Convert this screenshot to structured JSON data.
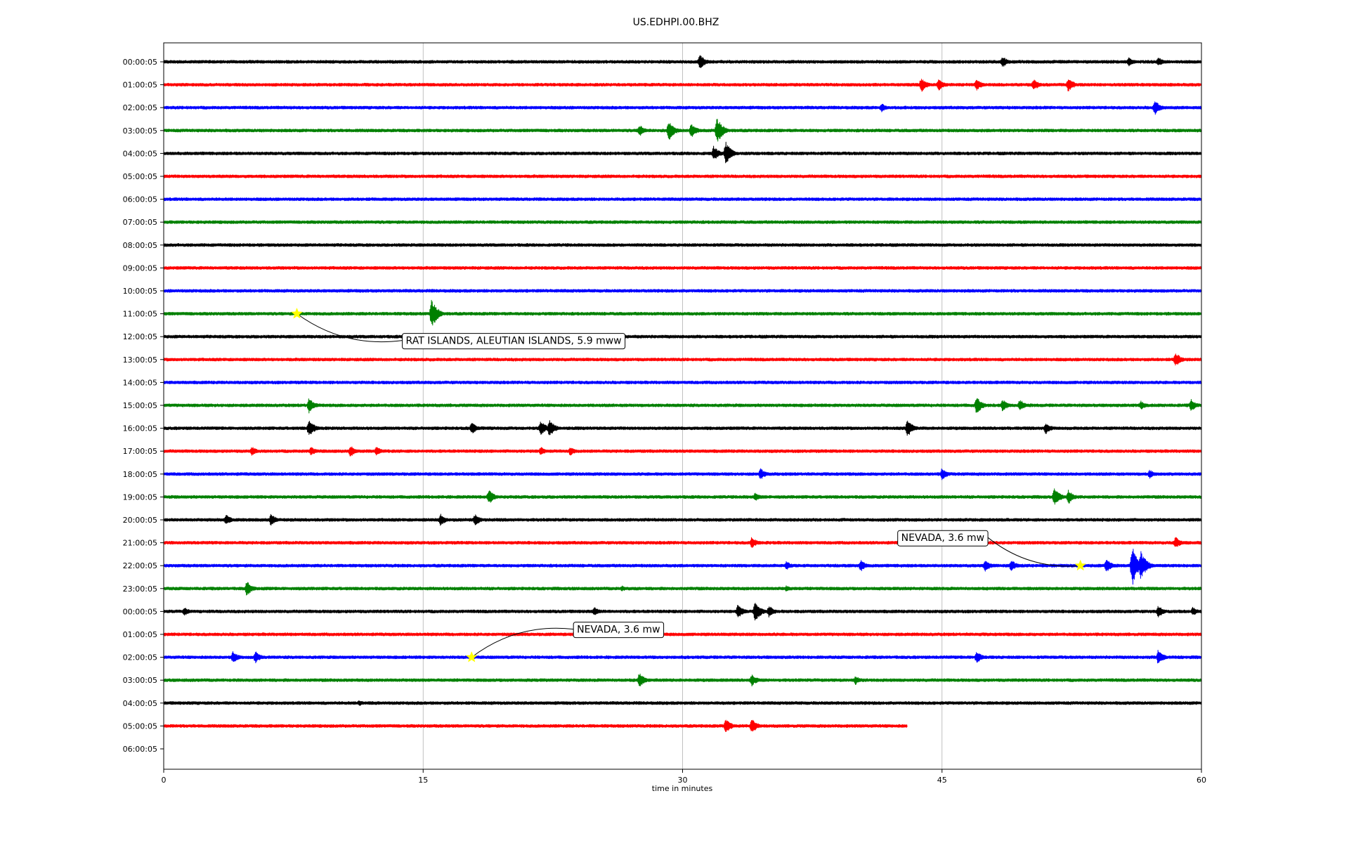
{
  "chart_data": {
    "type": "line",
    "title": "US.EDHPI.00.BHZ",
    "xlabel": "time in minutes",
    "ylabel": "",
    "xlim": [
      0,
      60
    ],
    "x_ticks": [
      0,
      15,
      30,
      45,
      60
    ],
    "grid": "vertical lines at x ticks",
    "row_labels": [
      "00:00:05",
      "01:00:05",
      "02:00:05",
      "03:00:05",
      "04:00:05",
      "05:00:05",
      "06:00:05",
      "07:00:05",
      "08:00:05",
      "09:00:05",
      "10:00:05",
      "11:00:05",
      "12:00:05",
      "13:00:05",
      "14:00:05",
      "15:00:05",
      "16:00:05",
      "17:00:05",
      "18:00:05",
      "19:00:05",
      "20:00:05",
      "21:00:05",
      "22:00:05",
      "23:00:05",
      "00:00:05",
      "01:00:05",
      "02:00:05",
      "03:00:05",
      "04:00:05",
      "05:00:05",
      "06:00:05"
    ],
    "colors": [
      "#000000",
      "#ff0000",
      "#0000ff",
      "#008000"
    ],
    "noise_amplitude": 1.0,
    "last_trace": {
      "row": 29,
      "end_minute": 43
    },
    "bursts": [
      {
        "row": 0,
        "minute": 31,
        "amplitude": 5
      },
      {
        "row": 0,
        "minute": 48.5,
        "amplitude": 4
      },
      {
        "row": 0,
        "minute": 55.8,
        "amplitude": 3
      },
      {
        "row": 0,
        "minute": 57.5,
        "amplitude": 3
      },
      {
        "row": 1,
        "minute": 43.8,
        "amplitude": 5
      },
      {
        "row": 1,
        "minute": 44.8,
        "amplitude": 4
      },
      {
        "row": 1,
        "minute": 47,
        "amplitude": 4
      },
      {
        "row": 1,
        "minute": 50.3,
        "amplitude": 4
      },
      {
        "row": 1,
        "minute": 52.3,
        "amplitude": 5
      },
      {
        "row": 2,
        "minute": 41.5,
        "amplitude": 3
      },
      {
        "row": 2,
        "minute": 57.3,
        "amplitude": 5
      },
      {
        "row": 3,
        "minute": 27.5,
        "amplitude": 4
      },
      {
        "row": 3,
        "minute": 29.2,
        "amplitude": 7
      },
      {
        "row": 3,
        "minute": 30.5,
        "amplitude": 5
      },
      {
        "row": 3,
        "minute": 32,
        "amplitude": 9
      },
      {
        "row": 4,
        "minute": 31.8,
        "amplitude": 5
      },
      {
        "row": 4,
        "minute": 32.5,
        "amplitude": 8
      },
      {
        "row": 11,
        "minute": 15.5,
        "amplitude": 10
      },
      {
        "row": 13,
        "minute": 58.5,
        "amplitude": 5
      },
      {
        "row": 15,
        "minute": 8.4,
        "amplitude": 5
      },
      {
        "row": 15,
        "minute": 47,
        "amplitude": 6
      },
      {
        "row": 15,
        "minute": 48.5,
        "amplitude": 4
      },
      {
        "row": 15,
        "minute": 49.5,
        "amplitude": 4
      },
      {
        "row": 15,
        "minute": 56.5,
        "amplitude": 3
      },
      {
        "row": 15,
        "minute": 59.4,
        "amplitude": 4
      },
      {
        "row": 16,
        "minute": 8.4,
        "amplitude": 6
      },
      {
        "row": 16,
        "minute": 17.8,
        "amplitude": 4
      },
      {
        "row": 16,
        "minute": 21.8,
        "amplitude": 5
      },
      {
        "row": 16,
        "minute": 22.3,
        "amplitude": 6
      },
      {
        "row": 16,
        "minute": 43,
        "amplitude": 6
      },
      {
        "row": 16,
        "minute": 51,
        "amplitude": 4
      },
      {
        "row": 17,
        "minute": 5.1,
        "amplitude": 3
      },
      {
        "row": 17,
        "minute": 8.5,
        "amplitude": 3
      },
      {
        "row": 17,
        "minute": 10.8,
        "amplitude": 4
      },
      {
        "row": 17,
        "minute": 12.3,
        "amplitude": 3
      },
      {
        "row": 17,
        "minute": 21.8,
        "amplitude": 3
      },
      {
        "row": 17,
        "minute": 23.5,
        "amplitude": 3
      },
      {
        "row": 18,
        "minute": 34.5,
        "amplitude": 4
      },
      {
        "row": 18,
        "minute": 45,
        "amplitude": 4
      },
      {
        "row": 18,
        "minute": 57,
        "amplitude": 3
      },
      {
        "row": 19,
        "minute": 18.8,
        "amplitude": 5
      },
      {
        "row": 19,
        "minute": 34.2,
        "amplitude": 3
      },
      {
        "row": 19,
        "minute": 51.5,
        "amplitude": 6
      },
      {
        "row": 19,
        "minute": 52.3,
        "amplitude": 5
      },
      {
        "row": 20,
        "minute": 3.6,
        "amplitude": 4
      },
      {
        "row": 20,
        "minute": 6.2,
        "amplitude": 4
      },
      {
        "row": 20,
        "minute": 16,
        "amplitude": 4
      },
      {
        "row": 20,
        "minute": 18,
        "amplitude": 4
      },
      {
        "row": 21,
        "minute": 34,
        "amplitude": 4
      },
      {
        "row": 21,
        "minute": 58.5,
        "amplitude": 4
      },
      {
        "row": 22,
        "minute": 36,
        "amplitude": 3
      },
      {
        "row": 22,
        "minute": 40.3,
        "amplitude": 4
      },
      {
        "row": 22,
        "minute": 47.5,
        "amplitude": 4
      },
      {
        "row": 22,
        "minute": 49,
        "amplitude": 4
      },
      {
        "row": 22,
        "minute": 54.5,
        "amplitude": 5
      },
      {
        "row": 22,
        "minute": 56,
        "amplitude": 14
      },
      {
        "row": 22,
        "minute": 56.5,
        "amplitude": 10
      },
      {
        "row": 23,
        "minute": 4.8,
        "amplitude": 5
      },
      {
        "row": 23,
        "minute": 26.5,
        "amplitude": 2
      },
      {
        "row": 23,
        "minute": 36,
        "amplitude": 2
      },
      {
        "row": 24,
        "minute": 1.2,
        "amplitude": 3
      },
      {
        "row": 24,
        "minute": 24.9,
        "amplitude": 3
      },
      {
        "row": 24,
        "minute": 33.2,
        "amplitude": 5
      },
      {
        "row": 24,
        "minute": 34.2,
        "amplitude": 7
      },
      {
        "row": 24,
        "minute": 35,
        "amplitude": 4
      },
      {
        "row": 24,
        "minute": 57.5,
        "amplitude": 4
      },
      {
        "row": 24,
        "minute": 59.5,
        "amplitude": 3
      },
      {
        "row": 26,
        "minute": 4,
        "amplitude": 4
      },
      {
        "row": 26,
        "minute": 5.3,
        "amplitude": 4
      },
      {
        "row": 26,
        "minute": 47,
        "amplitude": 4
      },
      {
        "row": 26,
        "minute": 57.5,
        "amplitude": 5
      },
      {
        "row": 27,
        "minute": 27.5,
        "amplitude": 5
      },
      {
        "row": 27,
        "minute": 34,
        "amplitude": 4
      },
      {
        "row": 27,
        "minute": 40,
        "amplitude": 3
      },
      {
        "row": 28,
        "minute": 11.3,
        "amplitude": 2
      },
      {
        "row": 29,
        "minute": 32.5,
        "amplitude": 5
      },
      {
        "row": 29,
        "minute": 34,
        "amplitude": 5
      }
    ],
    "events": [
      {
        "label": "RAT ISLANDS, ALEUTIAN ISLANDS, 5.9 mww",
        "row": 11,
        "minute": 7.7
      },
      {
        "label": "NEVADA, 3.6 mw",
        "row": 22,
        "minute": 53
      },
      {
        "label": "NEVADA, 3.6 mw",
        "row": 26,
        "minute": 17.8
      }
    ],
    "event_marker_color": "#ffff00"
  }
}
